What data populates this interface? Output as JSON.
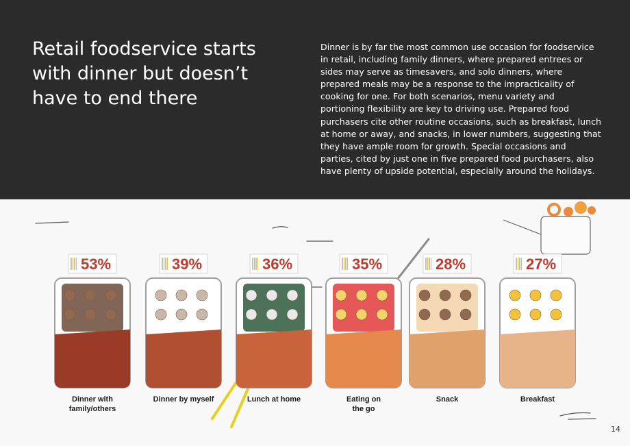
{
  "header": {
    "title": "Retail foodservice starts with dinner but doesn’t have to end there",
    "body": "Dinner is by far the most common use occasion for foodservice in retail, including family dinners, where prepared entrees or sides may serve as timesavers, and solo dinners, where prepared meals may be a response to the impracticality of cooking for one. For both scenarios, menu variety and portioning flexibility are key to driving use. Prepared food purchasers cite other routine occasions, such as breakfast, lunch at home or away, and snacks, in lower numbers, suggesting that they have ample room for growth. Special occasions and parties, cited by just one in five prepared food purchasers, also have plenty of upside potential, especially around the holidays."
  },
  "occasions": [
    {
      "label": "53%",
      "caption_lines": [
        "Dinner with",
        "family/others"
      ]
    },
    {
      "label": "39%",
      "caption_lines": [
        "Dinner by myself"
      ]
    },
    {
      "label": "36%",
      "caption_lines": [
        "Lunch at home"
      ]
    },
    {
      "label": "35%",
      "caption_lines": [
        "Eating on",
        "the go"
      ]
    },
    {
      "label": "28%",
      "caption_lines": [
        "Snack"
      ]
    },
    {
      "label": "27%",
      "caption_lines": [
        "Breakfast"
      ]
    }
  ],
  "page_number": "14",
  "colors": {
    "accent": "#c0392b",
    "dark": "#2b2b2b",
    "sleeve": "#d98758"
  }
}
